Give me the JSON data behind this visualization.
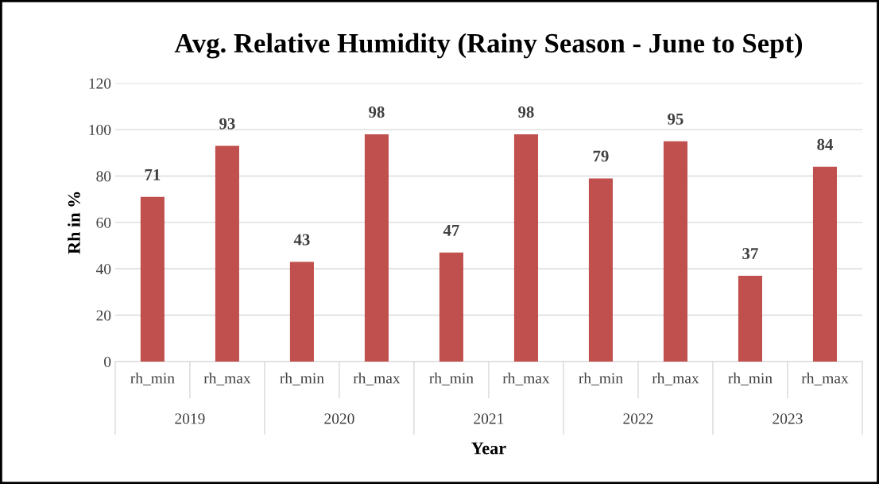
{
  "chart_data": {
    "type": "bar",
    "title": "Avg. Relative Humidity (Rainy Season - June to Sept)",
    "xlabel": "Year",
    "ylabel": "Rh in %",
    "categories": [
      "rh_min",
      "rh_max",
      "rh_min",
      "rh_max",
      "rh_min",
      "rh_max",
      "rh_min",
      "rh_max",
      "rh_min",
      "rh_max"
    ],
    "annotations": [
      "2019",
      "2020",
      "2021",
      "2022",
      "2023"
    ],
    "values": [
      71,
      93,
      43,
      98,
      47,
      98,
      79,
      95,
      37,
      84
    ],
    "color": "#c0504d",
    "data_labels": true,
    "ylim": [
      0,
      120
    ],
    "yticks": [
      0,
      20,
      40,
      60,
      80,
      100,
      120
    ],
    "grid": "y",
    "legend": false
  }
}
